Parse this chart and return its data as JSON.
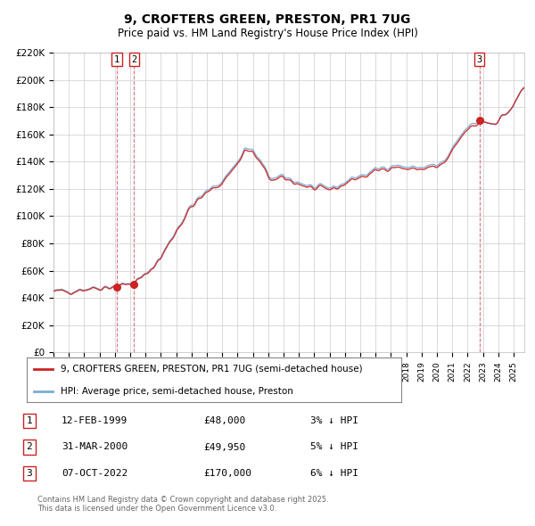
{
  "title": "9, CROFTERS GREEN, PRESTON, PR1 7UG",
  "subtitle": "Price paid vs. HM Land Registry's House Price Index (HPI)",
  "legend_line1": "9, CROFTERS GREEN, PRESTON, PR1 7UG (semi-detached house)",
  "legend_line2": "HPI: Average price, semi-detached house, Preston",
  "footer": "Contains HM Land Registry data © Crown copyright and database right 2025.\nThis data is licensed under the Open Government Licence v3.0.",
  "sale_dates_num": [
    1999.117,
    2000.247,
    2022.767
  ],
  "sale_prices": [
    48000,
    49950,
    170000
  ],
  "sale_labels": [
    "1",
    "2",
    "3"
  ],
  "sale_label_date": [
    "12-FEB-1999",
    "31-MAR-2000",
    "07-OCT-2022"
  ],
  "sale_label_price": [
    "£48,000",
    "£49,950",
    "£170,000"
  ],
  "sale_label_pct": [
    "3% ↓ HPI",
    "5% ↓ HPI",
    "6% ↓ HPI"
  ],
  "hpi_color": "#7aacd6",
  "price_color": "#cc2222",
  "vline_color": "#cc2222",
  "shade_color": "#ddeeff",
  "ylim": [
    0,
    220000
  ],
  "yticks": [
    0,
    20000,
    40000,
    60000,
    80000,
    100000,
    120000,
    140000,
    160000,
    180000,
    200000,
    220000
  ],
  "ytick_labels": [
    "£0",
    "£20K",
    "£40K",
    "£60K",
    "£80K",
    "£100K",
    "£120K",
    "£140K",
    "£160K",
    "£180K",
    "£200K",
    "£220K"
  ],
  "xlim_start": 1995.0,
  "xlim_end": 2025.7,
  "background_color": "#ffffff",
  "grid_color": "#cccccc",
  "fig_width": 6.0,
  "fig_height": 5.9
}
